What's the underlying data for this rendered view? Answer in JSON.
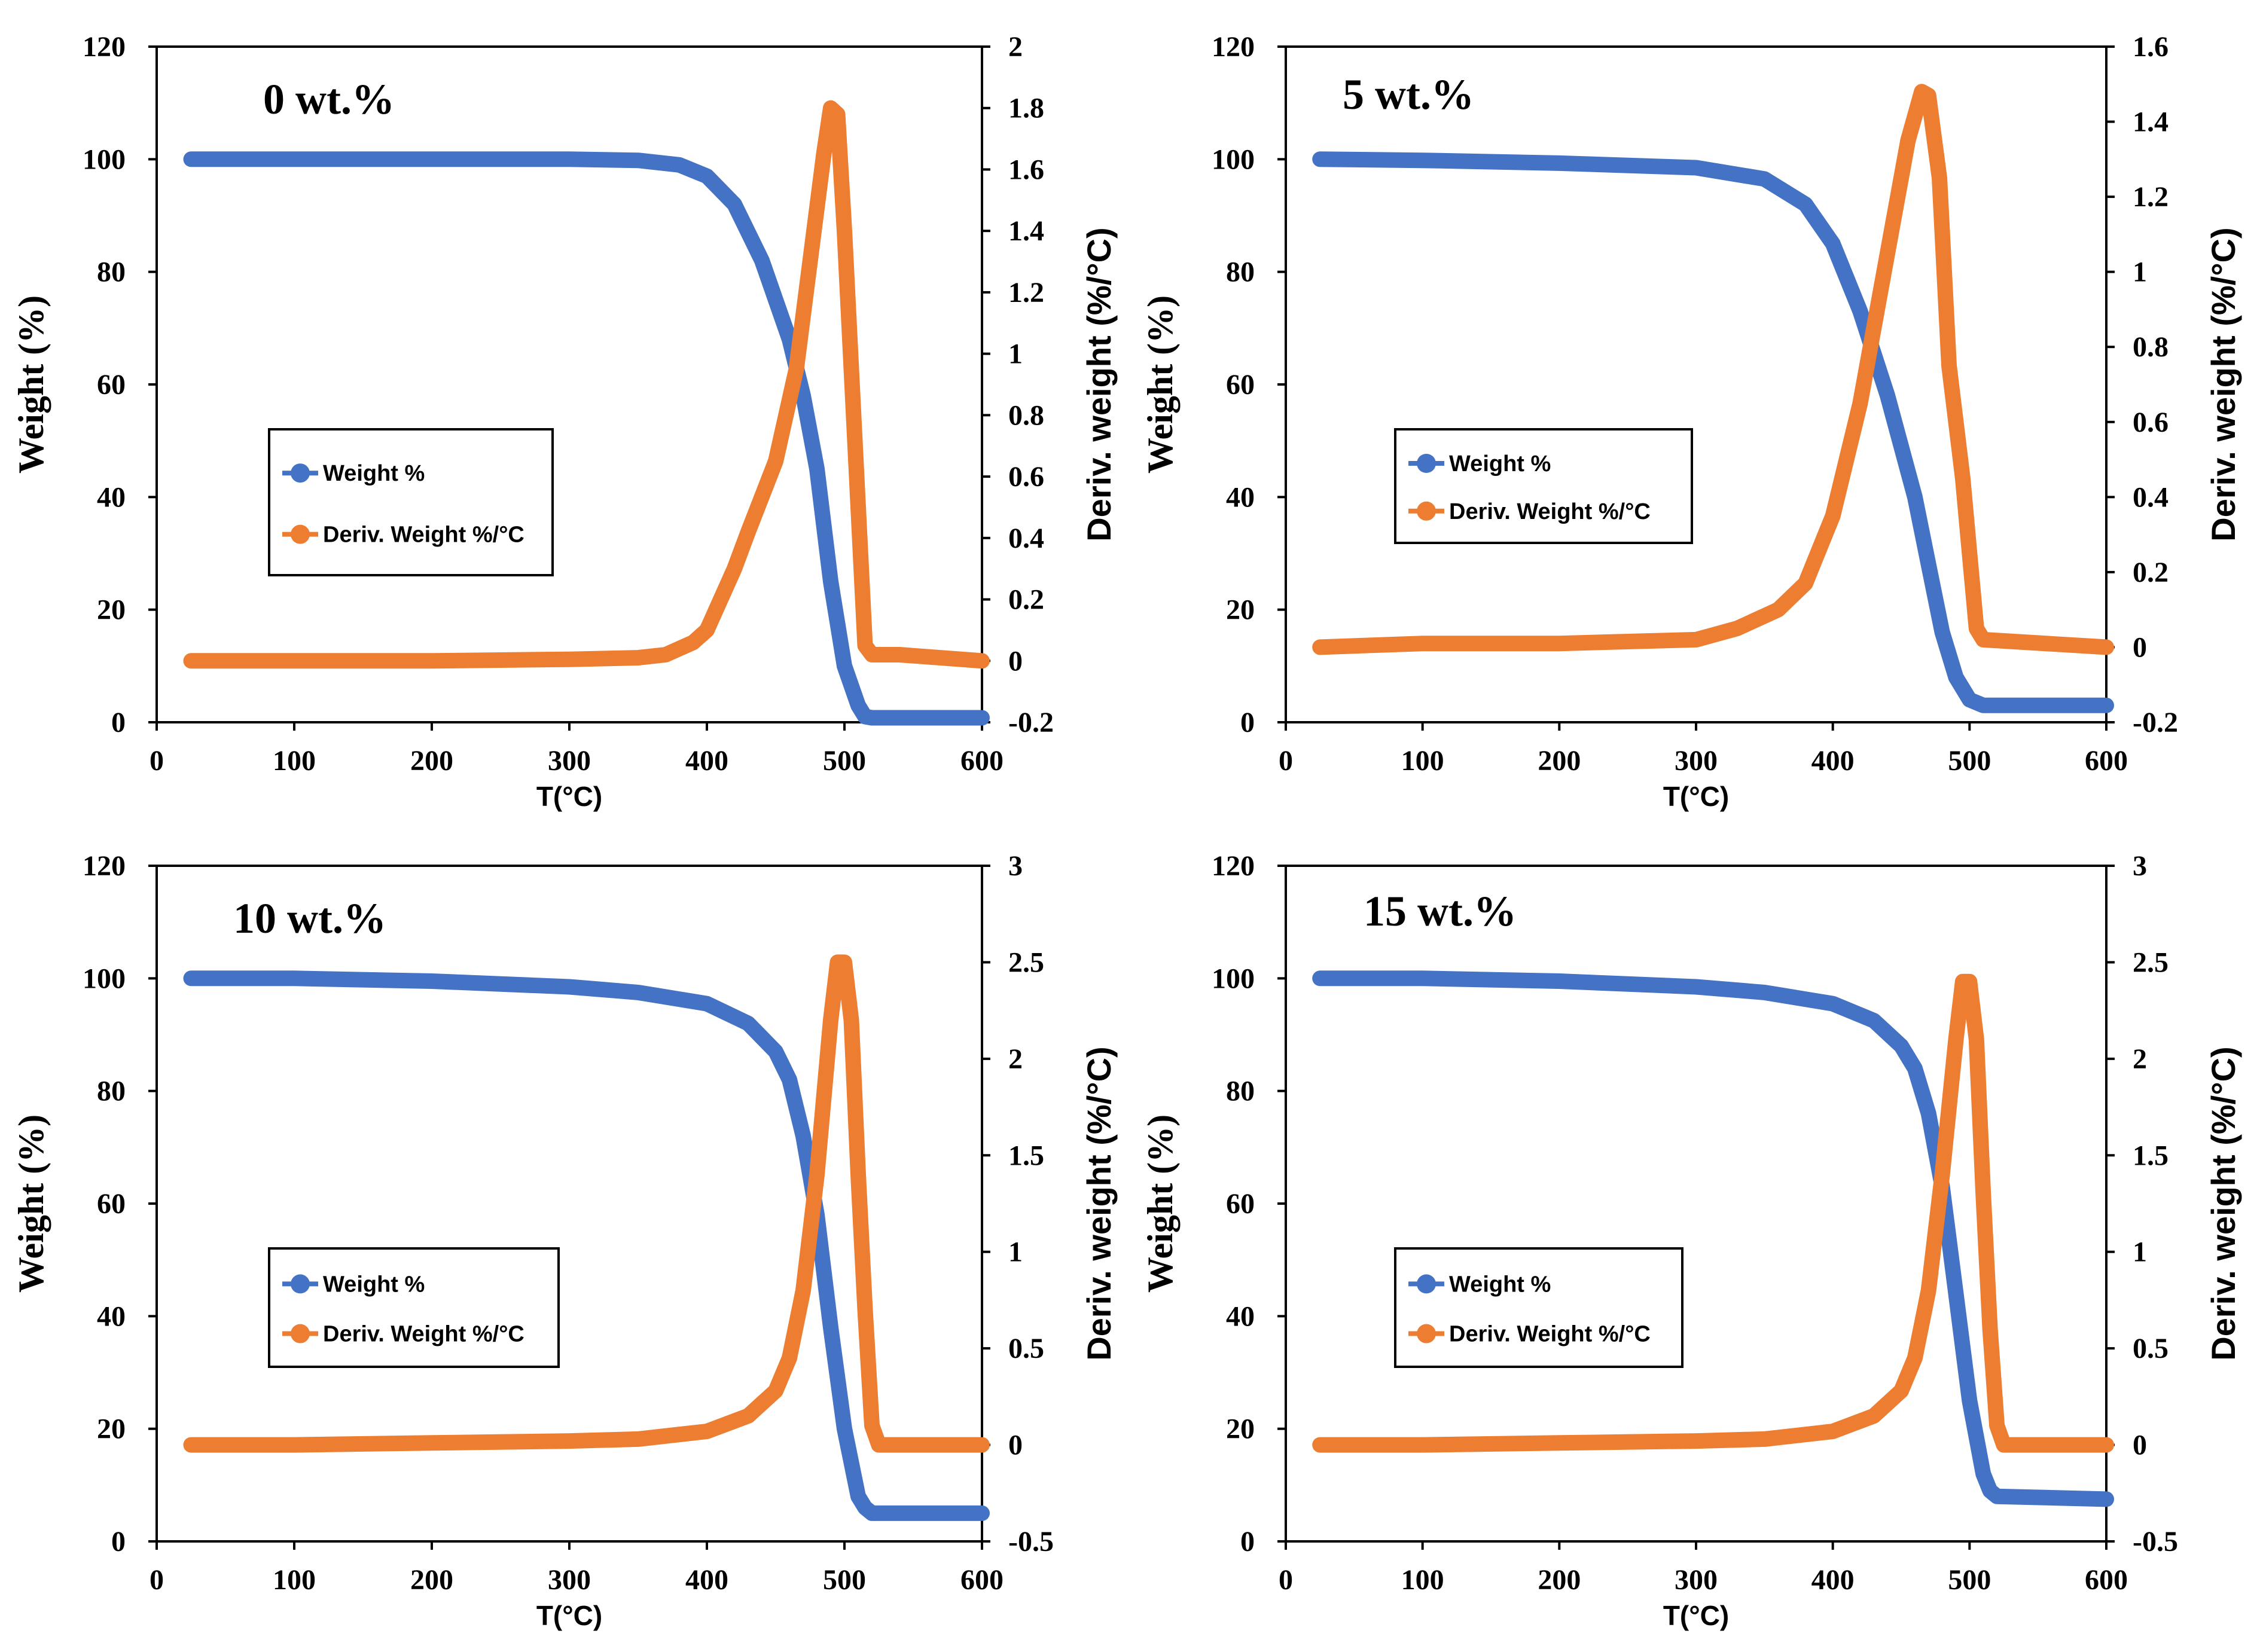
{
  "colors": {
    "weight": "#4472C4",
    "deriv": "#ED7D31",
    "axis": "#000000"
  },
  "chart_data": [
    {
      "type": "line",
      "title": "0 wt.%",
      "xlabel": "T(°C)",
      "ylabel": "Weight (%)",
      "y2label": "Deriv. weight (%/°C)",
      "xlim": [
        0,
        600
      ],
      "ylim": [
        0,
        120
      ],
      "y2lim": [
        -0.2,
        2
      ],
      "xticks": [
        0,
        100,
        200,
        300,
        400,
        500,
        600
      ],
      "yticks": [
        0,
        20,
        40,
        60,
        80,
        100,
        120
      ],
      "y2ticks": [
        -0.2,
        0,
        0.2,
        0.4,
        0.6,
        0.8,
        1,
        1.2,
        1.4,
        1.6,
        1.8,
        2
      ],
      "legend_position": "center-left",
      "series": [
        {
          "name": "Weight %",
          "axis": "left",
          "x": [
            25,
            100,
            200,
            300,
            350,
            380,
            400,
            420,
            440,
            460,
            470,
            480,
            490,
            500,
            510,
            515,
            520,
            600
          ],
          "y": [
            100,
            100,
            100,
            100,
            99.8,
            99,
            97,
            92,
            82,
            68,
            58,
            45,
            25,
            10,
            3,
            1,
            0.8,
            0.8
          ]
        },
        {
          "name": "Deriv. Weight %/°C",
          "axis": "right",
          "x": [
            25,
            100,
            200,
            300,
            350,
            370,
            390,
            400,
            420,
            430,
            450,
            465,
            475,
            485,
            490,
            495,
            500,
            510,
            515,
            520,
            540,
            600
          ],
          "y": [
            0,
            0,
            0,
            0.005,
            0.01,
            0.02,
            0.06,
            0.1,
            0.3,
            0.42,
            0.65,
            0.95,
            1.3,
            1.65,
            1.8,
            1.78,
            1.4,
            0.5,
            0.05,
            0.02,
            0.02,
            0
          ]
        }
      ]
    },
    {
      "type": "line",
      "title": "5 wt.%",
      "xlabel": "T(°C)",
      "ylabel": "Weight (%)",
      "y2label": "Deriv. weight (%/°C)",
      "xlim": [
        0,
        600
      ],
      "ylim": [
        0,
        120
      ],
      "y2lim": [
        -0.2,
        1.6
      ],
      "xticks": [
        0,
        100,
        200,
        300,
        400,
        500,
        600
      ],
      "yticks": [
        0,
        20,
        40,
        60,
        80,
        100,
        120
      ],
      "y2ticks": [
        -0.2,
        0,
        0.2,
        0.4,
        0.6,
        0.8,
        1,
        1.2,
        1.4,
        1.6
      ],
      "legend_position": "center-left",
      "series": [
        {
          "name": "Weight %",
          "axis": "left",
          "x": [
            25,
            100,
            200,
            300,
            350,
            380,
            400,
            420,
            440,
            460,
            470,
            480,
            490,
            500,
            510,
            600
          ],
          "y": [
            100,
            99.8,
            99.3,
            98.5,
            96.5,
            92,
            85,
            73,
            58,
            40,
            28,
            16,
            8,
            4,
            3,
            3
          ]
        },
        {
          "name": "Deriv. Weight %/°C",
          "axis": "right",
          "x": [
            25,
            100,
            200,
            300,
            330,
            360,
            380,
            400,
            420,
            440,
            455,
            465,
            470,
            478,
            485,
            490,
            495,
            500,
            505,
            510,
            600
          ],
          "y": [
            0,
            0.01,
            0.01,
            0.02,
            0.05,
            0.1,
            0.17,
            0.35,
            0.65,
            1.05,
            1.35,
            1.48,
            1.47,
            1.25,
            0.75,
            0.6,
            0.45,
            0.25,
            0.05,
            0.02,
            0
          ]
        }
      ]
    },
    {
      "type": "line",
      "title": "10 wt.%",
      "xlabel": "T(°C)",
      "ylabel": "Weight (%)",
      "y2label": "Deriv. weight (%/°C)",
      "xlim": [
        0,
        600
      ],
      "ylim": [
        0,
        120
      ],
      "y2lim": [
        -0.5,
        3
      ],
      "xticks": [
        0,
        100,
        200,
        300,
        400,
        500,
        600
      ],
      "yticks": [
        0,
        20,
        40,
        60,
        80,
        100,
        120
      ],
      "y2ticks": [
        -0.5,
        0,
        0.5,
        1,
        1.5,
        2,
        2.5,
        3
      ],
      "legend_position": "bottom-left",
      "series": [
        {
          "name": "Weight %",
          "axis": "left",
          "x": [
            25,
            100,
            200,
            300,
            350,
            400,
            430,
            450,
            460,
            470,
            480,
            490,
            500,
            510,
            515,
            520,
            600
          ],
          "y": [
            100,
            100,
            99.5,
            98.5,
            97.5,
            95.5,
            92,
            87,
            82,
            72,
            58,
            38,
            20,
            8,
            6,
            5,
            5
          ]
        },
        {
          "name": "Deriv. Weight %/°C",
          "axis": "right",
          "x": [
            25,
            100,
            200,
            300,
            350,
            400,
            430,
            450,
            460,
            470,
            480,
            490,
            495,
            500,
            505,
            510,
            515,
            520,
            525,
            600
          ],
          "y": [
            0,
            0,
            0.01,
            0.02,
            0.03,
            0.07,
            0.15,
            0.28,
            0.45,
            0.8,
            1.4,
            2.2,
            2.5,
            2.5,
            2.2,
            1.4,
            0.7,
            0.1,
            0,
            0
          ]
        }
      ]
    },
    {
      "type": "line",
      "title": "15 wt.%",
      "xlabel": "T(°C)",
      "ylabel": "Weight (%)",
      "y2label": "Deriv. weight (%/°C)",
      "xlim": [
        0,
        600
      ],
      "ylim": [
        0,
        120
      ],
      "y2lim": [
        -0.5,
        3
      ],
      "xticks": [
        0,
        100,
        200,
        300,
        400,
        500,
        600
      ],
      "yticks": [
        0,
        20,
        40,
        60,
        80,
        100,
        120
      ],
      "y2ticks": [
        -0.5,
        0,
        0.5,
        1,
        1.5,
        2,
        2.5,
        3
      ],
      "legend_position": "bottom-left",
      "series": [
        {
          "name": "Weight %",
          "axis": "left",
          "x": [
            25,
            100,
            200,
            300,
            350,
            400,
            430,
            450,
            460,
            470,
            480,
            490,
            500,
            510,
            515,
            520,
            600
          ],
          "y": [
            100,
            100,
            99.5,
            98.5,
            97.5,
            95.5,
            92.5,
            88,
            84,
            76,
            63,
            44,
            25,
            12,
            9,
            8,
            7.5
          ]
        },
        {
          "name": "Deriv. Weight %/°C",
          "axis": "right",
          "x": [
            25,
            100,
            200,
            300,
            350,
            400,
            430,
            450,
            460,
            470,
            480,
            490,
            495,
            500,
            505,
            510,
            515,
            520,
            525,
            600
          ],
          "y": [
            0,
            0,
            0.01,
            0.02,
            0.03,
            0.07,
            0.15,
            0.28,
            0.45,
            0.8,
            1.4,
            2.1,
            2.4,
            2.4,
            2.1,
            1.3,
            0.6,
            0.1,
            0,
            0
          ]
        }
      ]
    }
  ]
}
